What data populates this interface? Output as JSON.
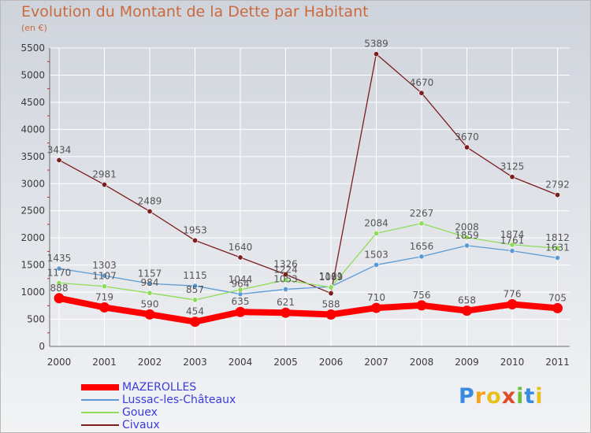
{
  "title": "Evolution du Montant de la Dette par Habitant",
  "subtitle": "(en €)",
  "logo": "Proxiti",
  "colors": {
    "axis_text": "#3a3a3a",
    "grid": "#ffffff",
    "title": "#c96a3f",
    "legend_text": "#3b3bdc"
  },
  "chart_data": {
    "type": "line",
    "x": [
      "2000",
      "2001",
      "2002",
      "2003",
      "2004",
      "2005",
      "2006",
      "2007",
      "2008",
      "2009",
      "2010",
      "2011"
    ],
    "ylim": [
      0,
      5500
    ],
    "yticks": [
      0,
      500,
      1000,
      1500,
      2000,
      2500,
      3000,
      3500,
      4000,
      4500,
      5000,
      5500
    ],
    "grid": true,
    "legend_position": "bottom-left",
    "series": [
      {
        "name": "MAZEROLLES",
        "color": "#ff0000",
        "emphasis": true,
        "values": [
          888,
          719,
          590,
          454,
          635,
          621,
          588,
          710,
          756,
          658,
          776,
          705
        ],
        "labels": [
          "888",
          "719",
          "590",
          "454",
          "635",
          "621",
          "588",
          "710",
          "756",
          "658",
          "776",
          "705"
        ]
      },
      {
        "name": "Lussac-les-Châteaux",
        "color": "#5b9bd5",
        "values": [
          1435,
          1303,
          1157,
          1115,
          964,
          1053,
          1101,
          1503,
          1656,
          1859,
          1761,
          1631
        ],
        "labels": [
          "1435",
          "1303",
          "1157",
          "1115",
          "964",
          "1053",
          "1101",
          "1503",
          "1656",
          "1859",
          "1761",
          "1631"
        ]
      },
      {
        "name": "Gouex",
        "color": "#8fdc5a",
        "values": [
          1170,
          1107,
          984,
          857,
          1044,
          1224,
          1089,
          2084,
          2267,
          2008,
          1874,
          1812
        ],
        "labels": [
          "1170",
          "1107",
          "984",
          "857",
          "1044",
          "1224",
          "1089",
          "2084",
          "2267",
          "2008",
          "1874",
          "1812"
        ]
      },
      {
        "name": "Civaux",
        "color": "#7a1e1e",
        "values": [
          3434,
          2981,
          2489,
          1953,
          1640,
          1326,
          979,
          5389,
          4670,
          3670,
          3125,
          2792
        ],
        "labels": [
          "3434",
          "2981",
          "2489",
          "1953",
          "1640",
          "1326",
          "",
          "5389",
          "4670",
          "3670",
          "3125",
          "2792"
        ]
      }
    ]
  }
}
